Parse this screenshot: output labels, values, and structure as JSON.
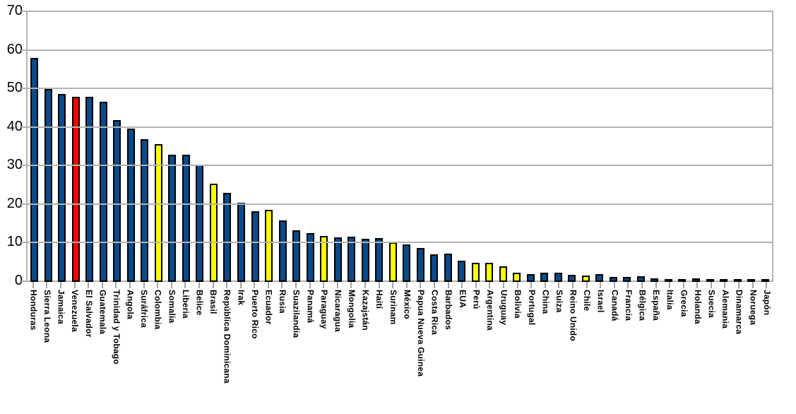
{
  "chart_data": {
    "type": "bar",
    "title": "",
    "xlabel": "",
    "ylabel": "",
    "ylim": [
      0,
      70
    ],
    "yticks": [
      0,
      10,
      20,
      30,
      40,
      50,
      60,
      70
    ],
    "grid": true,
    "legend": "none",
    "palette": {
      "default": "#0A4A8A",
      "red_highlight": "#FF0000",
      "yellow_highlight": "#FFFF00",
      "bar_outline": "#000000",
      "gridline": "#B3B3B3",
      "axis_line": "#B3B3B3",
      "tick": "#A6A6A6",
      "background": "#FFFFFF",
      "text": "#000000"
    },
    "categories": [
      "Honduras",
      "Sierra Leona",
      "Jamaica",
      "Venezuela",
      "El Salvador",
      "Guatemala",
      "Trinidad y Tobago",
      "Angola",
      "Suráfrica",
      "Colombia",
      "Somalia",
      "Liberia",
      "Belice",
      "Brasil",
      "República Dominicana",
      "Irak",
      "Puerto Rico",
      "Ecuador",
      "Rusia",
      "Suazilandia",
      "Panamá",
      "Paraguay",
      "Nicaragua",
      "Mongolia",
      "Kazajstán",
      "Haití",
      "Surinam",
      "México",
      "Papua Nueva Guinea",
      "Costa Rica",
      "Barbados",
      "EUA",
      "Perú",
      "Argentina",
      "Uruguay",
      "Bolivia",
      "Portugal",
      "China",
      "Suiza",
      "Reino Unido",
      "Chile",
      "Israel",
      "Canadá",
      "Francia",
      "Bélgica",
      "España",
      "Italia",
      "Grecia",
      "Holanda",
      "Suecia",
      "Alemania",
      "Dinamarca",
      "Noruega",
      "Japón"
    ],
    "values": [
      58,
      50,
      48.7,
      48,
      48,
      46.8,
      42,
      39.8,
      37,
      35.7,
      33,
      33,
      30.4,
      25.4,
      23.1,
      20.6,
      18.3,
      18.7,
      15.9,
      13.3,
      12.6,
      11.9,
      11.5,
      11.7,
      11.1,
      11.3,
      10.2,
      9.8,
      8.8,
      7.2,
      7.3,
      5.5,
      5,
      5,
      4,
      2.3,
      2.1,
      2.3,
      2.3,
      1.9,
      1.6,
      2,
      1.2,
      1.2,
      1.5,
      1,
      0.8,
      0.8,
      0.9,
      0.8,
      0.7,
      0.7,
      0.6,
      0.4
    ],
    "bar_colors": [
      "default",
      "default",
      "default",
      "red_highlight",
      "default",
      "default",
      "default",
      "default",
      "default",
      "yellow_highlight",
      "default",
      "default",
      "default",
      "yellow_highlight",
      "default",
      "default",
      "default",
      "yellow_highlight",
      "default",
      "default",
      "default",
      "yellow_highlight",
      "default",
      "default",
      "default",
      "default",
      "yellow_highlight",
      "default",
      "default",
      "default",
      "default",
      "default",
      "yellow_highlight",
      "yellow_highlight",
      "yellow_highlight",
      "yellow_highlight",
      "default",
      "default",
      "default",
      "default",
      "yellow_highlight",
      "default",
      "default",
      "default",
      "default",
      "default",
      "default",
      "default",
      "default",
      "default",
      "default",
      "default",
      "default",
      "default"
    ]
  }
}
